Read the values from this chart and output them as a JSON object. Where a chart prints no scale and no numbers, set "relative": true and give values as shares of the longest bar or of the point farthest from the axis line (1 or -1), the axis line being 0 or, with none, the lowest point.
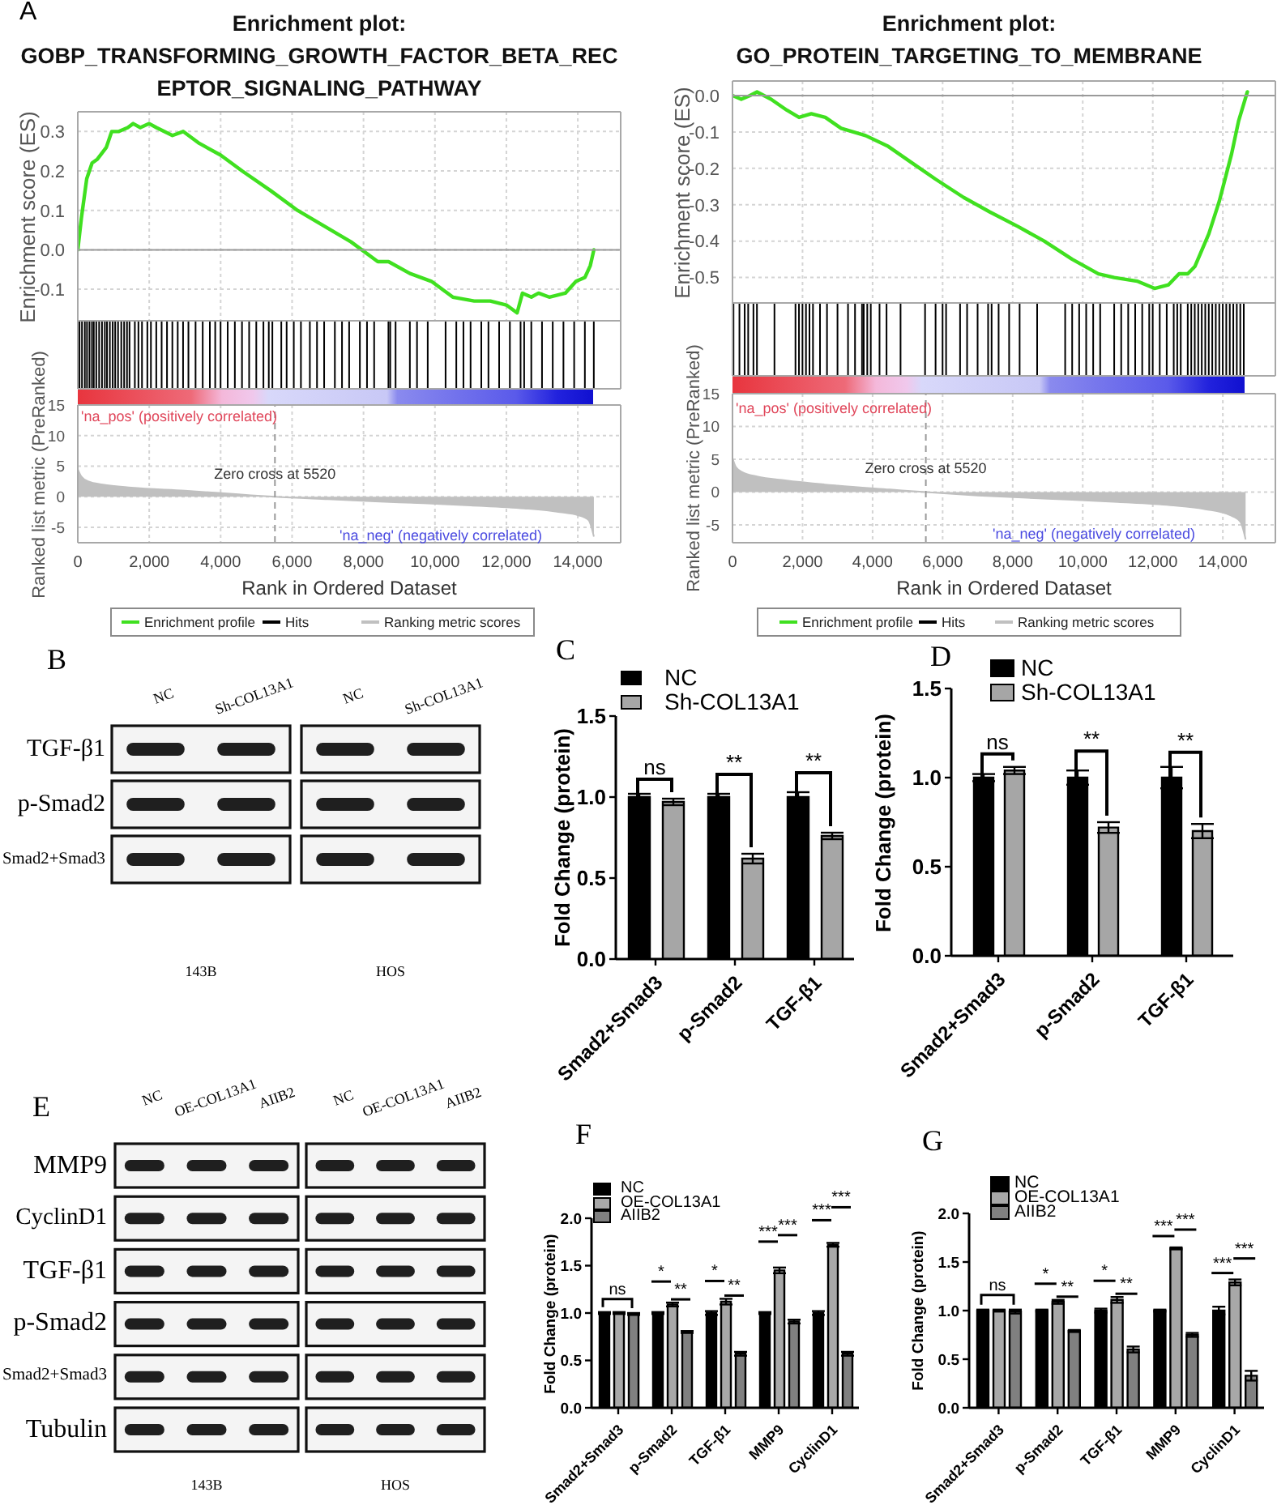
{
  "chart_data": [
    {
      "type": "line",
      "title": "Enrichment plot: GOBP_TRANSFORMING_GROWTH_FACTOR_BETA_RECEPTOR_SIGNALING_PATHWAY",
      "annotations": [
        "A"
      ],
      "ylabel": "Enrichment score (ES)",
      "xlim": [
        0,
        15200
      ],
      "xticks": [
        0,
        2000,
        4000,
        6000,
        8000,
        10000,
        12000,
        14000
      ],
      "tick_labels": "y",
      "ylim": [
        -0.18,
        0.35
      ],
      "yticks": [
        -0.1,
        {
          "value": 0,
          "label": "0.0"
        },
        0.1,
        0.2,
        0.3
      ],
      "grid": true,
      "legend": "bottom",
      "ref_lines": [
        {
          "axis": "y",
          "value": 0
        }
      ],
      "series": [
        {
          "name": "Enrichment profile",
          "color": "#40e020",
          "x": [
            0,
            100,
            250,
            400,
            550,
            800,
            950,
            1150,
            1400,
            1550,
            1750,
            2000,
            2200,
            2650,
            2950,
            3400,
            4000,
            4600,
            5400,
            6150,
            6900,
            7650,
            8400,
            8700,
            9300,
            9900,
            10500,
            11100,
            11550,
            12000,
            12300,
            12450,
            12700,
            12900,
            13200,
            13650,
            13950,
            14200,
            14350,
            14450
          ],
          "values": [
            0,
            0.08,
            0.18,
            0.22,
            0.23,
            0.26,
            0.3,
            0.3,
            0.31,
            0.32,
            0.31,
            0.32,
            0.31,
            0.29,
            0.3,
            0.27,
            0.24,
            0.2,
            0.15,
            0.1,
            0.06,
            0.02,
            -0.03,
            -0.03,
            -0.06,
            -0.08,
            -0.12,
            -0.13,
            -0.13,
            -0.14,
            -0.16,
            -0.11,
            -0.12,
            -0.11,
            -0.12,
            -0.11,
            -0.08,
            -0.07,
            -0.04,
            0
          ]
        }
      ]
    },
    {
      "type": "bar",
      "relative": true,
      "xlim": [
        0,
        15200
      ],
      "tick_labels": false,
      "legend": "bottom",
      "series": [
        {
          "name": "Hits",
          "color": "#000000",
          "x": [
            50,
            120,
            200,
            260,
            330,
            400,
            450,
            520,
            600,
            680,
            760,
            820,
            900,
            980,
            1050,
            1130,
            1220,
            1300,
            1380,
            1450,
            1600,
            1700,
            1800,
            1950,
            2050,
            2200,
            2350,
            2500,
            2650,
            2800,
            2950,
            3100,
            3300,
            3500,
            3700,
            3850,
            4000,
            4200,
            4400,
            4600,
            4800,
            5000,
            5200,
            5350,
            5450,
            5700,
            5850,
            6050,
            6250,
            6500,
            6700,
            6900,
            7200,
            7400,
            7600,
            7900,
            8100,
            8300,
            8700,
            8750,
            8900,
            9300,
            9500,
            9800,
            10300,
            10600,
            10800,
            11000,
            11300,
            11500,
            11800,
            12100,
            12400,
            12500,
            12700,
            13000,
            13300,
            13600,
            13900,
            14200,
            14450
          ],
          "values": [
            1,
            1,
            1,
            1,
            1,
            1,
            1,
            1,
            1,
            1,
            1,
            1,
            1,
            1,
            1,
            1,
            1,
            1,
            1,
            1,
            1,
            1,
            1,
            1,
            1,
            1,
            1,
            1,
            1,
            1,
            1,
            1,
            1,
            1,
            1,
            1,
            1,
            1,
            1,
            1,
            1,
            1,
            1,
            1,
            1,
            1,
            1,
            1,
            1,
            1,
            1,
            1,
            1,
            1,
            1,
            1,
            1,
            1,
            1,
            1,
            1,
            1,
            1,
            1,
            1,
            1,
            1,
            1,
            1,
            1,
            1,
            1,
            1,
            1,
            1,
            1,
            1,
            1,
            1,
            1,
            1
          ]
        }
      ]
    },
    {
      "type": "area",
      "xlabel": "Rank in Ordered Dataset",
      "ylabel": "Ranked list metric (PreRanked)",
      "annotations": [
        "'na_pos' (positively correlated)",
        "'na_neg' (negatively correlated)"
      ],
      "xlim": [
        0,
        15200
      ],
      "xticks": [
        0,
        {
          "value": 2000,
          "label": "2,000"
        },
        {
          "value": 4000,
          "label": "4,000"
        },
        {
          "value": 6000,
          "label": "6,000"
        },
        {
          "value": 8000,
          "label": "8,000"
        },
        {
          "value": 10000,
          "label": "10,000"
        },
        {
          "value": 12000,
          "label": "12,000"
        },
        {
          "value": 14000,
          "label": "14,000"
        }
      ],
      "ylim": [
        -7.5,
        15
      ],
      "yticks": [
        -5,
        0,
        5,
        10,
        15
      ],
      "grid": true,
      "legend": "bottom",
      "ref_lines": [
        {
          "axis": "x",
          "value": 5520,
          "label": "Zero cross at 5520",
          "line_style": "dashed"
        }
      ],
      "series": [
        {
          "name": "Ranking metric scores",
          "color": "#c0c0c0",
          "x": [
            0,
            100,
            300,
            700,
            1500,
            3000,
            4500,
            5520,
            7000,
            9000,
            11000,
            12500,
            13500,
            14000,
            14300,
            14450
          ],
          "values": [
            4.5,
            3.3,
            2.5,
            2,
            1.5,
            1,
            0.4,
            0,
            -0.4,
            -0.9,
            -1.4,
            -1.9,
            -2.5,
            -3,
            -3.8,
            -6.5
          ]
        }
      ]
    },
    {
      "type": "line",
      "title": "Enrichment plot: GO_PROTEIN_TARGETING_TO_MEMBRANE",
      "ylabel": "Enrichment score (ES)",
      "xlim": [
        0,
        15500
      ],
      "xticks": [
        0,
        2000,
        4000,
        6000,
        8000,
        10000,
        12000,
        14000
      ],
      "tick_labels": "y",
      "ylim": [
        -0.57,
        0.04
      ],
      "yticks": [
        -0.5,
        -0.4,
        -0.3,
        -0.2,
        -0.1,
        {
          "value": 0,
          "label": "0.0"
        }
      ],
      "grid": true,
      "legend": "bottom",
      "ref_lines": [
        {
          "axis": "y",
          "value": 0
        }
      ],
      "series": [
        {
          "name": "Enrichment profile",
          "color": "#40e020",
          "x": [
            0,
            250,
            500,
            700,
            1100,
            1550,
            1900,
            2250,
            2650,
            3100,
            3800,
            4450,
            5050,
            5800,
            6600,
            7350,
            8150,
            8900,
            9700,
            10450,
            10900,
            11550,
            12050,
            12450,
            12750,
            13000,
            13200,
            13600,
            13900,
            14250,
            14450,
            14700
          ],
          "values": [
            0,
            -0.01,
            0,
            0.01,
            -0.01,
            -0.04,
            -0.06,
            -0.05,
            -0.06,
            -0.09,
            -0.11,
            -0.14,
            -0.18,
            -0.23,
            -0.28,
            -0.32,
            -0.36,
            -0.4,
            -0.45,
            -0.49,
            -0.5,
            -0.51,
            -0.53,
            -0.52,
            -0.49,
            -0.49,
            -0.47,
            -0.38,
            -0.29,
            -0.16,
            -0.07,
            0.01
          ]
        }
      ]
    },
    {
      "type": "bar",
      "relative": true,
      "xlim": [
        0,
        15500
      ],
      "tick_labels": false,
      "legend": "bottom",
      "series": [
        {
          "name": "Hits",
          "color": "#000000",
          "x": [
            30,
            200,
            350,
            450,
            600,
            700,
            1200,
            1800,
            1900,
            2000,
            2100,
            2200,
            2300,
            2500,
            2700,
            3000,
            3300,
            3500,
            3700,
            3750,
            3850,
            3950,
            4200,
            4400,
            4800,
            5500,
            5800,
            6000,
            6100,
            6500,
            6700,
            7000,
            7300,
            7400,
            7600,
            7900,
            8200,
            8700,
            9500,
            9700,
            9900,
            10100,
            10300,
            10500,
            10900,
            11100,
            11300,
            11500,
            11700,
            11900,
            12000,
            12200,
            12400,
            12600,
            12700,
            12800,
            13000,
            13100,
            13200,
            13300,
            13400,
            13500,
            13600,
            13700,
            13800,
            13900,
            14000,
            14100,
            14200,
            14300,
            14400,
            14500,
            14600
          ],
          "values": [
            1,
            1,
            1,
            1,
            1,
            1,
            1,
            1,
            1,
            1,
            1,
            1,
            1,
            1,
            1,
            1,
            1,
            1,
            1,
            1,
            1,
            1,
            1,
            1,
            1,
            1,
            1,
            1,
            1,
            1,
            1,
            1,
            1,
            1,
            1,
            1,
            1,
            1,
            1,
            1,
            1,
            1,
            1,
            1,
            1,
            1,
            1,
            1,
            1,
            1,
            1,
            1,
            1,
            1,
            1,
            1,
            1,
            1,
            1,
            1,
            1,
            1,
            1,
            1,
            1,
            1,
            1,
            1,
            1,
            1,
            1,
            1,
            1
          ]
        }
      ]
    },
    {
      "type": "area",
      "xlabel": "Rank in Ordered Dataset",
      "ylabel": "Ranked list metric (PreRanked)",
      "annotations": [
        "'na_pos' (positively correlated)",
        "'na_neg' (negatively correlated)"
      ],
      "xlim": [
        0,
        15500
      ],
      "xticks": [
        0,
        {
          "value": 2000,
          "label": "2,000"
        },
        {
          "value": 4000,
          "label": "4,000"
        },
        {
          "value": 6000,
          "label": "6,000"
        },
        {
          "value": 8000,
          "label": "8,000"
        },
        {
          "value": 10000,
          "label": "10,000"
        },
        {
          "value": 12000,
          "label": "12,000"
        },
        {
          "value": 14000,
          "label": "14,000"
        }
      ],
      "ylim": [
        -7.7,
        15
      ],
      "yticks": [
        -5,
        0,
        5,
        10,
        15
      ],
      "grid": true,
      "legend": "bottom",
      "ref_lines": [
        {
          "axis": "x",
          "value": 5520,
          "label": "Zero cross at 5520",
          "line_style": "dashed"
        }
      ],
      "series": [
        {
          "name": "Ranking metric scores",
          "color": "#c0c0c0",
          "x": [
            0,
            100,
            300,
            700,
            1500,
            3000,
            4500,
            5520,
            7000,
            9000,
            11000,
            12500,
            13500,
            14200,
            14500,
            14650
          ],
          "values": [
            5.2,
            3.8,
            3,
            2.4,
            1.8,
            1,
            0.4,
            0,
            -0.5,
            -1,
            -1.5,
            -2,
            -2.6,
            -3.5,
            -4.5,
            -7.2
          ]
        }
      ]
    },
    {
      "type": "other",
      "title": "B",
      "categories": [
        "NC",
        "Sh-COL13A1"
      ],
      "y_categories": [
        "TGF-β1",
        "p-Smad2",
        "Smad2+Smad3"
      ],
      "annotations": [
        "143B",
        "HOS"
      ]
    },
    {
      "type": "bar",
      "title": "C",
      "categories": [
        "Smad2+Smad3",
        "p-Smad2",
        "TGF-β1"
      ],
      "series": [
        {
          "name": "NC",
          "color": "#000000",
          "values": [
            1,
            1,
            1
          ],
          "errors": [
            0.02,
            0.02,
            0.03
          ]
        },
        {
          "name": "Sh-COL13A1",
          "color": "#a6a6a6",
          "values": [
            0.97,
            0.62,
            0.76
          ],
          "errors": [
            0.02,
            0.03,
            0.02
          ]
        }
      ],
      "ylabel": "Fold Change (protein)",
      "ylim": [
        0,
        1.5
      ],
      "yticks": [
        {
          "value": 0,
          "label": "0.0"
        },
        0.5,
        {
          "value": 1,
          "label": "1.0"
        },
        1.5
      ],
      "legend": "top left",
      "annotations": [
        {
          "text": "ns",
          "y": 1
        },
        {
          "text": "**",
          "y": 1
        },
        {
          "text": "**",
          "y": 1
        }
      ]
    },
    {
      "type": "bar",
      "title": "D",
      "categories": [
        "Smad2+Smad3",
        "p-Smad2",
        "TGF-β1"
      ],
      "series": [
        {
          "name": "NC",
          "color": "#000000",
          "values": [
            1,
            1,
            1
          ],
          "errors": [
            0.02,
            0.04,
            0.06
          ]
        },
        {
          "name": "Sh-COL13A1",
          "color": "#a6a6a6",
          "values": [
            1.04,
            0.72,
            0.7
          ],
          "errors": [
            0.02,
            0.03,
            0.04
          ]
        }
      ],
      "ylabel": "Fold Change (protein)",
      "ylim": [
        0,
        1.5
      ],
      "yticks": [
        {
          "value": 0,
          "label": "0.0"
        },
        0.5,
        {
          "value": 1,
          "label": "1.0"
        },
        1.5
      ],
      "legend": "top left",
      "annotations": [
        {
          "text": "ns",
          "y": 1
        },
        {
          "text": "**",
          "y": 1
        },
        {
          "text": "**",
          "y": 1
        }
      ]
    },
    {
      "type": "other",
      "title": "E",
      "categories": [
        "NC",
        "OE-COL13A1",
        "AIIB2"
      ],
      "y_categories": [
        "MMP9",
        "CyclinD1",
        "TGF-β1",
        "p-Smad2",
        "Smad2+Smad3",
        "Tubulin"
      ],
      "annotations": [
        "143B",
        "HOS"
      ]
    },
    {
      "type": "bar",
      "title": "F",
      "categories": [
        "Smad2+Smad3",
        "p-Smad2",
        "TGF-β1",
        "MMP9",
        "CyclinD1"
      ],
      "series": [
        {
          "name": "NC",
          "color": "#000000",
          "values": [
            1,
            1,
            1,
            1,
            1
          ],
          "errors": [
            0.01,
            0.01,
            0.02,
            0.01,
            0.02
          ]
        },
        {
          "name": "OE-COL13A1",
          "color": "#a8a8a8",
          "values": [
            1,
            1.09,
            1.12,
            1.45,
            1.72
          ],
          "errors": [
            0.01,
            0.02,
            0.03,
            0.03,
            0.02
          ]
        },
        {
          "name": "AIIB2",
          "color": "#808080",
          "values": [
            0.99,
            0.8,
            0.57,
            0.91,
            0.57
          ],
          "errors": [
            0.01,
            0.01,
            0.02,
            0.02,
            0.02
          ]
        }
      ],
      "ylabel": "Fold Change (protein)",
      "ylim": [
        0,
        2
      ],
      "yticks": [
        {
          "value": 0,
          "label": "0.0"
        },
        0.5,
        {
          "value": 1,
          "label": "1.0"
        },
        1.5,
        {
          "value": 2,
          "label": "2.0"
        }
      ],
      "legend": "top left",
      "annotations": [
        "ns",
        "*",
        "**",
        "*",
        "**",
        "***",
        "***",
        "***",
        "***"
      ]
    },
    {
      "type": "bar",
      "title": "G",
      "categories": [
        "Smad2+Smad3",
        "p-Smad2",
        "TGF-β1",
        "MMP9",
        "CyclinD1"
      ],
      "series": [
        {
          "name": "NC",
          "color": "#000000",
          "values": [
            1,
            1,
            1,
            1,
            1
          ],
          "errors": [
            0.01,
            0.01,
            0.02,
            0.01,
            0.04
          ]
        },
        {
          "name": "OE-COL13A1",
          "color": "#a8a8a8",
          "values": [
            1,
            1.09,
            1.11,
            1.64,
            1.29
          ],
          "errors": [
            0.01,
            0.02,
            0.03,
            0.01,
            0.03
          ]
        },
        {
          "name": "AIIB2",
          "color": "#808080",
          "values": [
            0.99,
            0.79,
            0.6,
            0.75,
            0.33
          ],
          "errors": [
            0.02,
            0.01,
            0.03,
            0.02,
            0.05
          ]
        }
      ],
      "ylabel": "Fold Change (protein)",
      "ylim": [
        0,
        2
      ],
      "yticks": [
        {
          "value": 0,
          "label": "0.0"
        },
        0.5,
        {
          "value": 1,
          "label": "1.0"
        },
        1.5,
        {
          "value": 2,
          "label": "2.0"
        }
      ],
      "legend": "top left",
      "annotations": [
        "ns",
        "*",
        "**",
        "*",
        "**",
        "***",
        "***",
        "***",
        "***"
      ]
    }
  ]
}
